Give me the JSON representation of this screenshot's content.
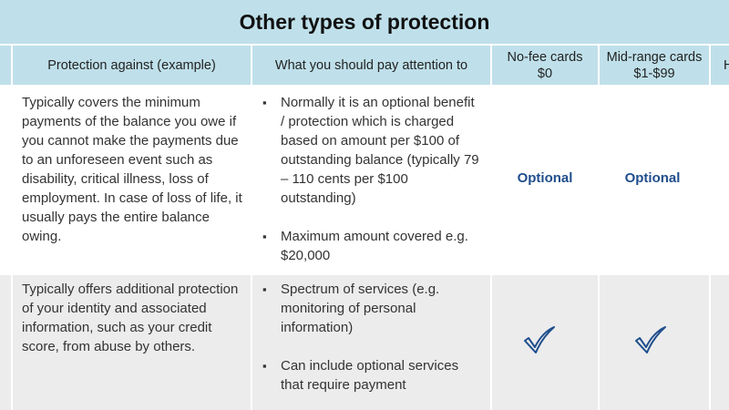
{
  "title": "Other types of protection",
  "columns": {
    "protection": "Protection against (example)",
    "attention": "What you should pay attention to",
    "no_fee": "No-fee cards",
    "no_fee_price": "$0",
    "mid_range": "Mid-range cards",
    "mid_range_price": "$1-$99",
    "cut_off": "H"
  },
  "rows": [
    {
      "protection": "Typically covers the minimum payments of the balance you owe if you cannot make the payments due to an unforeseen event such as disability, critical illness, loss of employment. In case of loss of life, it usually pays the entire balance owing.",
      "attention": [
        "Normally it is an optional benefit / protection which is charged based on amount per $100 of outstanding balance (typically 79 – 110  cents per $100 outstanding)",
        "Maximum amount covered e.g. $20,000"
      ],
      "no_fee": "Optional",
      "mid_range": "Optional"
    },
    {
      "protection": "Typically offers additional protection of your identity and associated information, such as your credit score, from abuse by others.",
      "attention": [
        "Spectrum of services (e.g. monitoring of personal information)",
        "Can include optional services that require payment"
      ],
      "no_fee": "checkmark-icon",
      "mid_range": "checkmark-icon"
    }
  ],
  "colors": {
    "header_bg": "#bfe0ea",
    "row_alt_bg": "#ececec",
    "optional_text": "#1f4e8c",
    "check": "#1f4e8c"
  }
}
